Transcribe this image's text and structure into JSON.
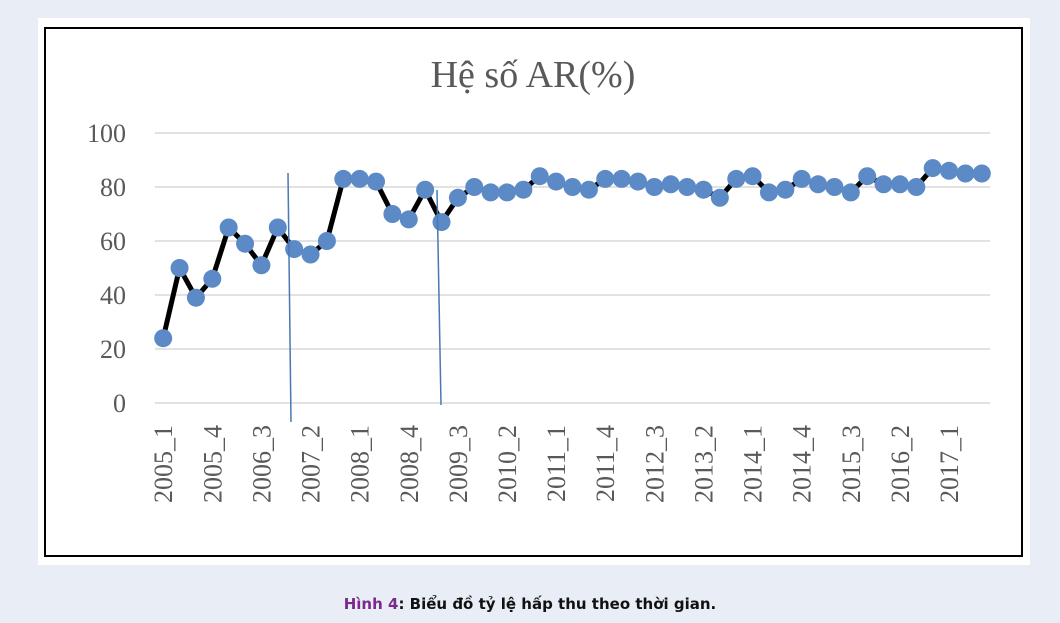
{
  "chart_data": {
    "type": "line",
    "title": "Hệ số AR(%)",
    "categories": [
      "2005_1",
      null,
      null,
      "2005_4",
      null,
      null,
      "2006_3",
      null,
      null,
      "2007_2",
      null,
      null,
      "2008_1",
      null,
      null,
      "2008_4",
      null,
      null,
      "2009_3",
      null,
      null,
      "2010_2",
      null,
      null,
      "2011_1",
      null,
      null,
      "2011_4",
      null,
      null,
      "2012_3",
      null,
      null,
      "2013_2",
      null,
      null,
      "2014_1",
      null,
      null,
      "2014_4",
      null,
      null,
      "2015_3",
      null,
      null,
      "2016_2",
      null,
      null,
      "2017_1",
      null,
      null
    ],
    "values": [
      24,
      50,
      39,
      46,
      65,
      59,
      51,
      65,
      57,
      55,
      60,
      83,
      83,
      82,
      70,
      68,
      79,
      67,
      76,
      80,
      78,
      78,
      79,
      84,
      82,
      80,
      79,
      83,
      83,
      82,
      80,
      81,
      80,
      79,
      76,
      83,
      84,
      78,
      79,
      83,
      81,
      80,
      78,
      84,
      81,
      81,
      80,
      87,
      86,
      85,
      85
    ],
    "line_color": "#000000",
    "marker_color": "#5b8ac6",
    "ylim": [
      0,
      100
    ],
    "yticks": [
      0,
      20,
      40,
      60,
      80,
      100
    ],
    "grid": true
  },
  "caption": {
    "label": "Hình 4",
    "text": ": Biểu đồ tỷ lệ hấp thu theo thời gian."
  }
}
